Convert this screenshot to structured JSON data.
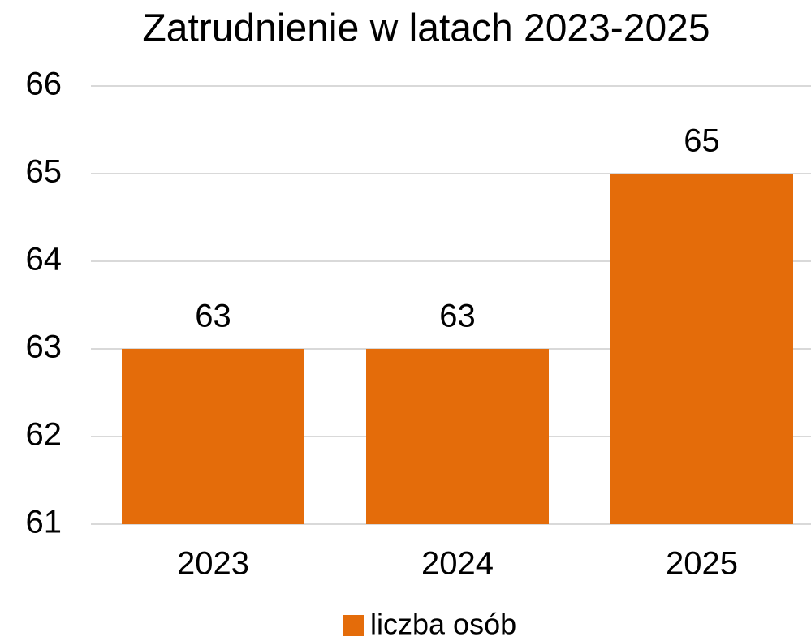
{
  "chart_data": {
    "type": "bar",
    "title": "Zatrudnienie w latach 2023-2025",
    "categories": [
      "2023",
      "2024",
      "2025"
    ],
    "series": [
      {
        "name": "liczba osób",
        "color": "#e46c0a",
        "values": [
          63,
          63,
          65
        ]
      }
    ],
    "ylim": [
      61,
      66
    ],
    "yticks": [
      61,
      62,
      63,
      64,
      65,
      66
    ],
    "grid": true,
    "legend": "bottom"
  }
}
